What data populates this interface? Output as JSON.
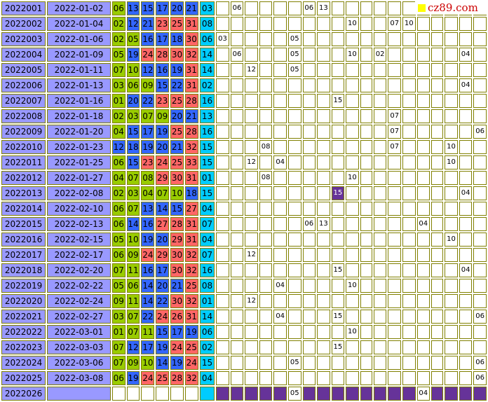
{
  "logo": {
    "text": "cz89.com",
    "square_color": "#ffff00",
    "text_color": "#cc0000"
  },
  "colors": {
    "issue_bg": "#9999ff",
    "green": "#99cc00",
    "blue": "#3366ff",
    "red": "#ff6666",
    "cyan": "#00ccff",
    "purple": "#663399",
    "border": "#808000"
  },
  "miss_columns": 19,
  "rows": [
    {
      "issue": "2022001",
      "date": "2022-01-02",
      "reds": [
        "06",
        "13",
        "15",
        "17",
        "20",
        "21"
      ],
      "colors": [
        "g",
        "b",
        "b",
        "b",
        "b",
        "b"
      ],
      "blue": "03",
      "miss": {
        "1": "06",
        "6": "06",
        "7": "13"
      }
    },
    {
      "issue": "2022002",
      "date": "2022-01-04",
      "reds": [
        "02",
        "12",
        "21",
        "23",
        "25",
        "31"
      ],
      "colors": [
        "g",
        "b",
        "b",
        "r",
        "r",
        "r"
      ],
      "blue": "08",
      "miss": {
        "9": "10",
        "12": "07",
        "13": "10"
      }
    },
    {
      "issue": "2022003",
      "date": "2022-01-06",
      "reds": [
        "02",
        "05",
        "16",
        "17",
        "18",
        "30"
      ],
      "colors": [
        "g",
        "g",
        "b",
        "b",
        "b",
        "r"
      ],
      "blue": "06",
      "miss": {
        "0": "03",
        "5": "05"
      }
    },
    {
      "issue": "2022004",
      "date": "2022-01-09",
      "reds": [
        "05",
        "19",
        "24",
        "28",
        "30",
        "32"
      ],
      "colors": [
        "g",
        "b",
        "r",
        "r",
        "r",
        "r"
      ],
      "blue": "14",
      "miss": {
        "1": "06",
        "5": "05",
        "9": "10",
        "11": "02",
        "17": "04"
      }
    },
    {
      "issue": "2022005",
      "date": "2022-01-11",
      "reds": [
        "07",
        "10",
        "12",
        "16",
        "19",
        "31"
      ],
      "colors": [
        "g",
        "g",
        "b",
        "b",
        "b",
        "r"
      ],
      "blue": "14",
      "miss": {
        "2": "12",
        "5": "05"
      }
    },
    {
      "issue": "2022006",
      "date": "2022-01-13",
      "reds": [
        "03",
        "06",
        "09",
        "15",
        "22",
        "31"
      ],
      "colors": [
        "g",
        "g",
        "g",
        "b",
        "b",
        "r"
      ],
      "blue": "02",
      "miss": {
        "17": "04"
      }
    },
    {
      "issue": "2022007",
      "date": "2022-01-16",
      "reds": [
        "01",
        "20",
        "22",
        "23",
        "25",
        "28"
      ],
      "colors": [
        "g",
        "b",
        "b",
        "r",
        "r",
        "r"
      ],
      "blue": "16",
      "miss": {
        "8": "15"
      }
    },
    {
      "issue": "2022008",
      "date": "2022-01-18",
      "reds": [
        "02",
        "03",
        "07",
        "09",
        "20",
        "21"
      ],
      "colors": [
        "g",
        "g",
        "g",
        "g",
        "b",
        "b"
      ],
      "blue": "13",
      "miss": {
        "12": "07"
      }
    },
    {
      "issue": "2022009",
      "date": "2022-01-20",
      "reds": [
        "04",
        "15",
        "17",
        "19",
        "25",
        "28"
      ],
      "colors": [
        "g",
        "b",
        "b",
        "b",
        "r",
        "r"
      ],
      "blue": "16",
      "miss": {
        "12": "07",
        "18": "06"
      }
    },
    {
      "issue": "2022010",
      "date": "2022-01-23",
      "reds": [
        "12",
        "18",
        "19",
        "20",
        "21",
        "32"
      ],
      "colors": [
        "b",
        "b",
        "b",
        "b",
        "b",
        "r"
      ],
      "blue": "15",
      "miss": {
        "3": "08",
        "12": "07",
        "16": "10"
      }
    },
    {
      "issue": "2022011",
      "date": "2022-01-25",
      "reds": [
        "06",
        "15",
        "23",
        "24",
        "25",
        "33"
      ],
      "colors": [
        "g",
        "b",
        "r",
        "r",
        "r",
        "r"
      ],
      "blue": "15",
      "miss": {
        "2": "12",
        "4": "04",
        "16": "10"
      }
    },
    {
      "issue": "2022012",
      "date": "2022-01-27",
      "reds": [
        "04",
        "07",
        "08",
        "29",
        "30",
        "31"
      ],
      "colors": [
        "g",
        "g",
        "g",
        "r",
        "r",
        "r"
      ],
      "blue": "01",
      "miss": {
        "3": "08",
        "9": "10"
      }
    },
    {
      "issue": "2022013",
      "date": "2022-02-08",
      "reds": [
        "02",
        "03",
        "04",
        "07",
        "10",
        "18"
      ],
      "colors": [
        "g",
        "g",
        "g",
        "g",
        "g",
        "b"
      ],
      "blue": "15",
      "miss": {
        "8": "15",
        "17": "04"
      },
      "hit": "8"
    },
    {
      "issue": "2022014",
      "date": "2022-02-10",
      "reds": [
        "06",
        "07",
        "13",
        "14",
        "15",
        "27"
      ],
      "colors": [
        "g",
        "g",
        "b",
        "b",
        "b",
        "r"
      ],
      "blue": "04",
      "miss": {}
    },
    {
      "issue": "2022015",
      "date": "2022-02-13",
      "reds": [
        "06",
        "14",
        "16",
        "27",
        "28",
        "31"
      ],
      "colors": [
        "g",
        "b",
        "b",
        "r",
        "r",
        "r"
      ],
      "blue": "07",
      "miss": {
        "6": "06",
        "7": "13",
        "14": "04"
      }
    },
    {
      "issue": "2022016",
      "date": "2022-02-15",
      "reds": [
        "05",
        "10",
        "19",
        "20",
        "29",
        "31"
      ],
      "colors": [
        "g",
        "g",
        "b",
        "b",
        "r",
        "r"
      ],
      "blue": "04",
      "miss": {
        "16": "10"
      }
    },
    {
      "issue": "2022017",
      "date": "2022-02-17",
      "reds": [
        "06",
        "09",
        "24",
        "29",
        "30",
        "32"
      ],
      "colors": [
        "g",
        "g",
        "r",
        "r",
        "r",
        "r"
      ],
      "blue": "07",
      "miss": {
        "2": "12"
      }
    },
    {
      "issue": "2022018",
      "date": "2022-02-20",
      "reds": [
        "07",
        "11",
        "16",
        "17",
        "30",
        "32"
      ],
      "colors": [
        "g",
        "g",
        "b",
        "b",
        "r",
        "r"
      ],
      "blue": "16",
      "miss": {
        "8": "15",
        "17": "04"
      }
    },
    {
      "issue": "2022019",
      "date": "2022-02-22",
      "reds": [
        "05",
        "06",
        "14",
        "20",
        "21",
        "25"
      ],
      "colors": [
        "g",
        "g",
        "b",
        "b",
        "b",
        "r"
      ],
      "blue": "08",
      "miss": {
        "4": "04",
        "9": "10"
      }
    },
    {
      "issue": "2022020",
      "date": "2022-02-24",
      "reds": [
        "09",
        "11",
        "14",
        "22",
        "30",
        "32"
      ],
      "colors": [
        "g",
        "g",
        "b",
        "b",
        "r",
        "r"
      ],
      "blue": "01",
      "miss": {
        "2": "12"
      }
    },
    {
      "issue": "2022021",
      "date": "2022-02-27",
      "reds": [
        "03",
        "07",
        "22",
        "24",
        "26",
        "31"
      ],
      "colors": [
        "g",
        "g",
        "b",
        "r",
        "r",
        "r"
      ],
      "blue": "14",
      "miss": {
        "4": "04",
        "8": "15",
        "18": "06"
      }
    },
    {
      "issue": "2022022",
      "date": "2022-03-01",
      "reds": [
        "01",
        "07",
        "11",
        "15",
        "17",
        "19"
      ],
      "colors": [
        "g",
        "g",
        "g",
        "b",
        "b",
        "b"
      ],
      "blue": "06",
      "miss": {
        "9": "10"
      }
    },
    {
      "issue": "2022023",
      "date": "2022-03-03",
      "reds": [
        "07",
        "12",
        "17",
        "19",
        "24",
        "25"
      ],
      "colors": [
        "g",
        "b",
        "b",
        "b",
        "r",
        "r"
      ],
      "blue": "02",
      "miss": {
        "8": "15"
      }
    },
    {
      "issue": "2022024",
      "date": "2022-03-06",
      "reds": [
        "07",
        "09",
        "10",
        "14",
        "19",
        "24"
      ],
      "colors": [
        "g",
        "g",
        "g",
        "b",
        "b",
        "r"
      ],
      "blue": "15",
      "miss": {
        "5": "05",
        "18": "06"
      }
    },
    {
      "issue": "2022025",
      "date": "2022-03-08",
      "reds": [
        "06",
        "19",
        "24",
        "25",
        "28",
        "32"
      ],
      "colors": [
        "g",
        "b",
        "r",
        "r",
        "r",
        "r"
      ],
      "blue": "04",
      "miss": {
        "18": "06"
      }
    },
    {
      "issue": "2022026",
      "date": "",
      "reds": [
        "",
        "",
        "",
        "",
        "",
        ""
      ],
      "colors": [
        "e",
        "e",
        "e",
        "e",
        "e",
        "e"
      ],
      "blue": "",
      "miss": {
        "5": "05",
        "14": "04"
      },
      "last": true
    }
  ]
}
